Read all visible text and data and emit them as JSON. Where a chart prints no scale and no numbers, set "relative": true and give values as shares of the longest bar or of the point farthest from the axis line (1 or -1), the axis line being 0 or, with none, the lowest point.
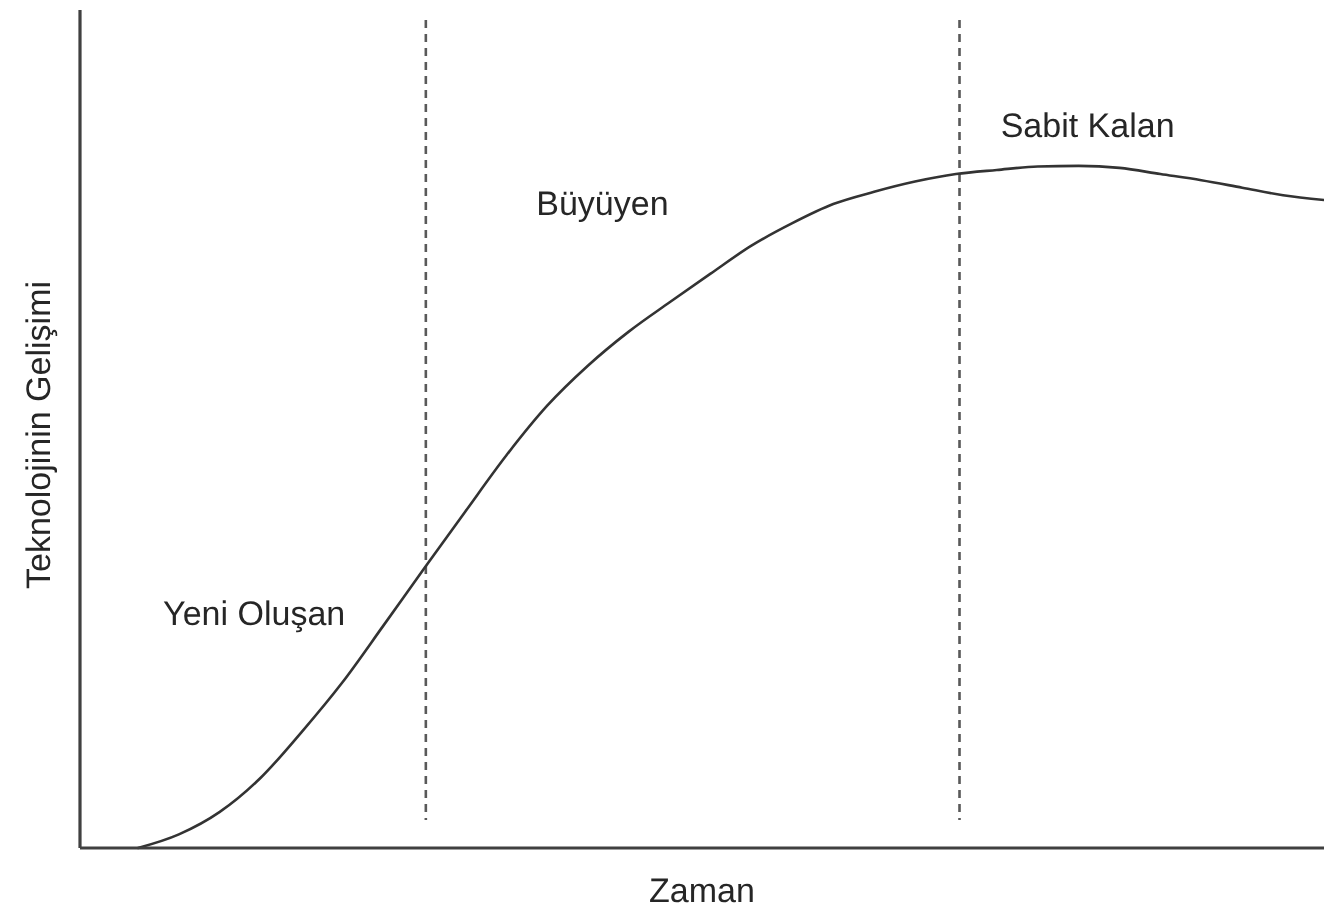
{
  "chart_data": {
    "type": "line",
    "relative": true,
    "xlabel": "Zaman",
    "ylabel": "Teknolojinin Gelişimi",
    "categories": [
      null,
      null,
      null,
      null,
      null,
      null,
      null,
      null,
      null,
      null,
      null,
      null,
      null,
      null,
      null,
      null,
      null,
      null,
      null,
      null,
      null,
      null,
      null,
      null,
      null,
      null,
      null,
      null,
      null,
      null
    ],
    "series": [
      {
        "color": "#333333",
        "values": [
          0,
          0.02,
          0.053,
          0.103,
          0.17,
          0.243,
          0.326,
          0.41,
          0.493,
          0.575,
          0.648,
          0.707,
          0.757,
          0.8,
          0.842,
          0.883,
          0.916,
          0.944,
          0.962,
          0.977,
          0.988,
          0.994,
          0.999,
          1,
          0.997,
          0.988,
          0.979,
          0.968,
          0.957,
          0.95
        ]
      }
    ],
    "annotations": [
      "Yeni Oluşan",
      "Büyüyen",
      "Sabit Kalan"
    ]
  }
}
